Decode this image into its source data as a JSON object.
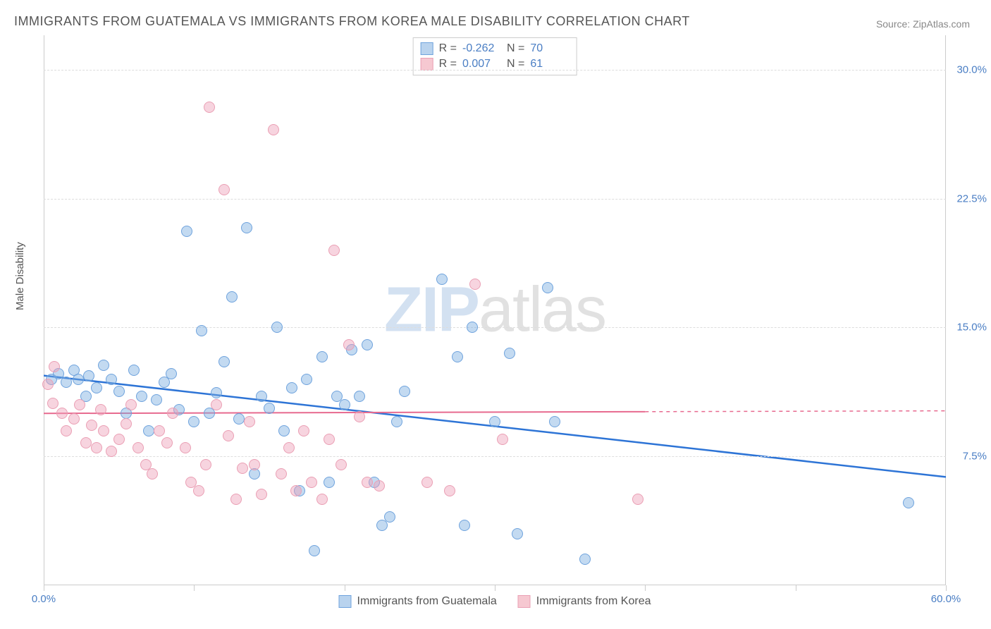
{
  "title": "IMMIGRANTS FROM GUATEMALA VS IMMIGRANTS FROM KOREA MALE DISABILITY CORRELATION CHART",
  "source": "Source: ZipAtlas.com",
  "watermark": {
    "part1": "ZIP",
    "part2": "atlas"
  },
  "chart": {
    "type": "scatter",
    "y_axis_label": "Male Disability",
    "xlim": [
      0,
      60
    ],
    "ylim": [
      0,
      32
    ],
    "x_ticks": [
      0,
      10,
      20,
      30,
      40,
      50,
      60
    ],
    "x_tick_labels": {
      "0": "0.0%",
      "60": "60.0%"
    },
    "y_gridlines": [
      7.5,
      15.0,
      22.5,
      30.0
    ],
    "y_tick_labels": [
      "7.5%",
      "15.0%",
      "22.5%",
      "30.0%"
    ],
    "background_color": "#ffffff",
    "grid_color": "#dddddd",
    "axis_color": "#cccccc",
    "tick_label_color": "#4a7ec4",
    "stats_legend": {
      "rows": [
        {
          "r": "-0.262",
          "n": "70",
          "swatch_fill": "#b9d3ee",
          "swatch_border": "#6fa3dd"
        },
        {
          "r": "0.007",
          "n": "61",
          "swatch_fill": "#f6c8d1",
          "swatch_border": "#ea9fb4"
        }
      ],
      "r_label": "R =",
      "n_label": "N ="
    },
    "bottom_legend": [
      {
        "label": "Immigrants from Guatemala",
        "swatch_fill": "#b9d3ee",
        "swatch_border": "#6fa3dd"
      },
      {
        "label": "Immigrants from Korea",
        "swatch_fill": "#f6c8d1",
        "swatch_border": "#ea9fb4"
      }
    ],
    "series": [
      {
        "name": "guatemala",
        "color_fill": "rgba(122,172,224,0.45)",
        "color_stroke": "#6fa3dd",
        "marker_radius": 8,
        "regression": {
          "x1": 0,
          "y1": 12.2,
          "x2": 60,
          "y2": 6.3,
          "color": "#2d74d6",
          "width": 2.5
        },
        "points": [
          [
            0.5,
            12.0
          ],
          [
            1.0,
            12.3
          ],
          [
            1.5,
            11.8
          ],
          [
            2.0,
            12.5
          ],
          [
            2.3,
            12.0
          ],
          [
            2.8,
            11.0
          ],
          [
            3.0,
            12.2
          ],
          [
            3.5,
            11.5
          ],
          [
            4.0,
            12.8
          ],
          [
            4.5,
            12.0
          ],
          [
            5.0,
            11.3
          ],
          [
            5.5,
            10.0
          ],
          [
            6.0,
            12.5
          ],
          [
            6.5,
            11.0
          ],
          [
            7.0,
            9.0
          ],
          [
            7.5,
            10.8
          ],
          [
            8.0,
            11.8
          ],
          [
            8.5,
            12.3
          ],
          [
            9.0,
            10.2
          ],
          [
            9.5,
            20.6
          ],
          [
            10.0,
            9.5
          ],
          [
            10.5,
            14.8
          ],
          [
            11.0,
            10.0
          ],
          [
            11.5,
            11.2
          ],
          [
            12.0,
            13.0
          ],
          [
            12.5,
            16.8
          ],
          [
            13.0,
            9.7
          ],
          [
            13.5,
            20.8
          ],
          [
            14.0,
            6.5
          ],
          [
            14.5,
            11.0
          ],
          [
            15.0,
            10.3
          ],
          [
            15.5,
            15.0
          ],
          [
            16.0,
            9.0
          ],
          [
            16.5,
            11.5
          ],
          [
            17.0,
            5.5
          ],
          [
            17.5,
            12.0
          ],
          [
            18.0,
            2.0
          ],
          [
            18.5,
            13.3
          ],
          [
            19.0,
            6.0
          ],
          [
            19.5,
            11.0
          ],
          [
            20.0,
            10.5
          ],
          [
            20.5,
            13.7
          ],
          [
            21.0,
            11.0
          ],
          [
            21.5,
            14.0
          ],
          [
            22.0,
            6.0
          ],
          [
            22.5,
            3.5
          ],
          [
            23.0,
            4.0
          ],
          [
            23.5,
            9.5
          ],
          [
            24.0,
            11.3
          ],
          [
            26.5,
            17.8
          ],
          [
            27.5,
            13.3
          ],
          [
            28.0,
            3.5
          ],
          [
            28.5,
            15.0
          ],
          [
            30.0,
            9.5
          ],
          [
            31.0,
            13.5
          ],
          [
            31.5,
            3.0
          ],
          [
            33.5,
            17.3
          ],
          [
            34.0,
            9.5
          ],
          [
            36.0,
            1.5
          ],
          [
            57.5,
            4.8
          ]
        ]
      },
      {
        "name": "korea",
        "color_fill": "rgba(238,160,185,0.45)",
        "color_stroke": "#ea9fb4",
        "marker_radius": 8,
        "regression": {
          "x1": 0,
          "y1": 10.0,
          "x2": 40,
          "y2": 10.1,
          "dash_extent_x": 60,
          "color": "#e76a8f",
          "width": 2
        },
        "points": [
          [
            0.3,
            11.7
          ],
          [
            0.6,
            10.6
          ],
          [
            0.7,
            12.7
          ],
          [
            1.2,
            10.0
          ],
          [
            1.5,
            9.0
          ],
          [
            2.0,
            9.7
          ],
          [
            2.4,
            10.5
          ],
          [
            2.8,
            8.3
          ],
          [
            3.2,
            9.3
          ],
          [
            3.5,
            8.0
          ],
          [
            3.8,
            10.2
          ],
          [
            4.0,
            9.0
          ],
          [
            4.5,
            7.8
          ],
          [
            5.0,
            8.5
          ],
          [
            5.5,
            9.4
          ],
          [
            5.8,
            10.5
          ],
          [
            6.3,
            8.0
          ],
          [
            6.8,
            7.0
          ],
          [
            7.2,
            6.5
          ],
          [
            7.7,
            9.0
          ],
          [
            8.2,
            8.3
          ],
          [
            8.6,
            10.0
          ],
          [
            9.4,
            8.0
          ],
          [
            9.8,
            6.0
          ],
          [
            10.3,
            5.5
          ],
          [
            10.8,
            7.0
          ],
          [
            11.0,
            27.8
          ],
          [
            11.5,
            10.5
          ],
          [
            12.0,
            23.0
          ],
          [
            12.3,
            8.7
          ],
          [
            12.8,
            5.0
          ],
          [
            13.2,
            6.8
          ],
          [
            13.7,
            9.5
          ],
          [
            14.0,
            7.0
          ],
          [
            14.5,
            5.3
          ],
          [
            15.3,
            26.5
          ],
          [
            15.8,
            6.5
          ],
          [
            16.3,
            8.0
          ],
          [
            16.8,
            5.5
          ],
          [
            17.3,
            9.0
          ],
          [
            17.8,
            6.0
          ],
          [
            18.5,
            5.0
          ],
          [
            19.0,
            8.5
          ],
          [
            19.3,
            19.5
          ],
          [
            19.8,
            7.0
          ],
          [
            20.3,
            14.0
          ],
          [
            21.0,
            9.8
          ],
          [
            21.5,
            6.0
          ],
          [
            22.3,
            5.8
          ],
          [
            25.5,
            6.0
          ],
          [
            27.0,
            5.5
          ],
          [
            28.7,
            17.5
          ],
          [
            30.5,
            8.5
          ],
          [
            39.5,
            5.0
          ]
        ]
      }
    ]
  }
}
